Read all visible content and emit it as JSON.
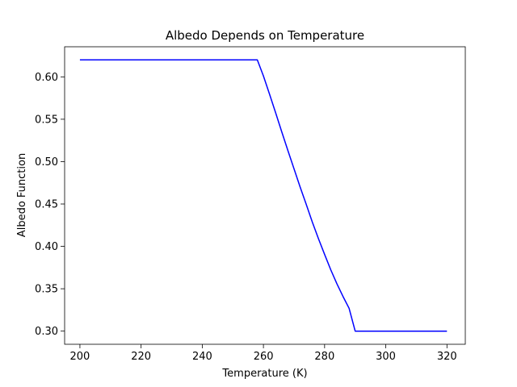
{
  "chart_data": {
    "type": "line",
    "title": "Albedo Depends on Temperature",
    "xlabel": "Temperature (K)",
    "ylabel": "Albedo Function",
    "xlim": [
      195,
      326
    ],
    "ylim": [
      0.2845,
      0.6355
    ],
    "xticks": [
      200,
      220,
      240,
      260,
      280,
      300,
      320
    ],
    "yticks": [
      0.3,
      0.35,
      0.4,
      0.45,
      0.5,
      0.55,
      0.6
    ],
    "xtick_labels": [
      "200",
      "220",
      "240",
      "260",
      "280",
      "300",
      "320"
    ],
    "ytick_labels": [
      "0.30",
      "0.35",
      "0.40",
      "0.45",
      "0.50",
      "0.55",
      "0.60"
    ],
    "grid": false,
    "legend": "none",
    "series": [
      {
        "color": "#0000ff",
        "x": [
          200,
          210,
          220,
          230,
          240,
          250,
          258,
          260,
          262,
          264,
          266,
          268,
          270,
          272,
          274,
          276,
          278,
          280,
          282,
          284,
          286,
          288,
          290,
          300,
          310,
          320
        ],
        "y": [
          0.62,
          0.62,
          0.62,
          0.62,
          0.62,
          0.62,
          0.62,
          0.601,
          0.5795,
          0.5575,
          0.535,
          0.513,
          0.4915,
          0.47,
          0.4495,
          0.4285,
          0.409,
          0.3905,
          0.3725,
          0.356,
          0.341,
          0.327,
          0.3,
          0.3,
          0.3,
          0.3
        ]
      }
    ]
  }
}
